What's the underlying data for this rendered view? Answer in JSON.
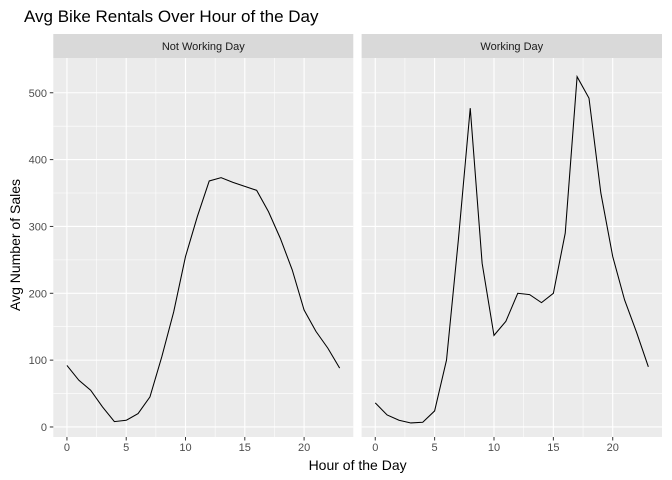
{
  "chart_data": {
    "type": "line",
    "title": "Avg Bike Rentals Over Hour of the Day",
    "xlabel": "Hour of the Day",
    "ylabel": "Avg Number of Sales",
    "xlim": [
      -1.15,
      24.15
    ],
    "ylim": [
      -15,
      552
    ],
    "x_ticks": [
      0,
      5,
      10,
      15,
      20
    ],
    "y_ticks": [
      0,
      100,
      200,
      300,
      400,
      500
    ],
    "grid": true,
    "legend": "none",
    "line_color": "#000000",
    "facets": [
      {
        "name": "Not Working Day",
        "x": [
          0,
          1,
          2,
          3,
          4,
          5,
          6,
          7,
          8,
          9,
          10,
          11,
          12,
          13,
          14,
          15,
          16,
          17,
          18,
          19,
          20,
          21,
          22,
          23
        ],
        "values": [
          92,
          70,
          55,
          30,
          8,
          10,
          20,
          45,
          105,
          172,
          255,
          315,
          368,
          373,
          366,
          360,
          354,
          322,
          282,
          235,
          175,
          143,
          118,
          88
        ]
      },
      {
        "name": "Working Day",
        "x": [
          0,
          1,
          2,
          3,
          4,
          5,
          6,
          7,
          8,
          9,
          10,
          11,
          12,
          13,
          14,
          15,
          16,
          17,
          18,
          19,
          20,
          21,
          22,
          23
        ],
        "values": [
          36,
          18,
          10,
          6,
          7,
          24,
          100,
          280,
          477,
          245,
          137,
          158,
          200,
          198,
          186,
          200,
          290,
          524,
          492,
          350,
          255,
          190,
          142,
          90
        ]
      }
    ]
  }
}
